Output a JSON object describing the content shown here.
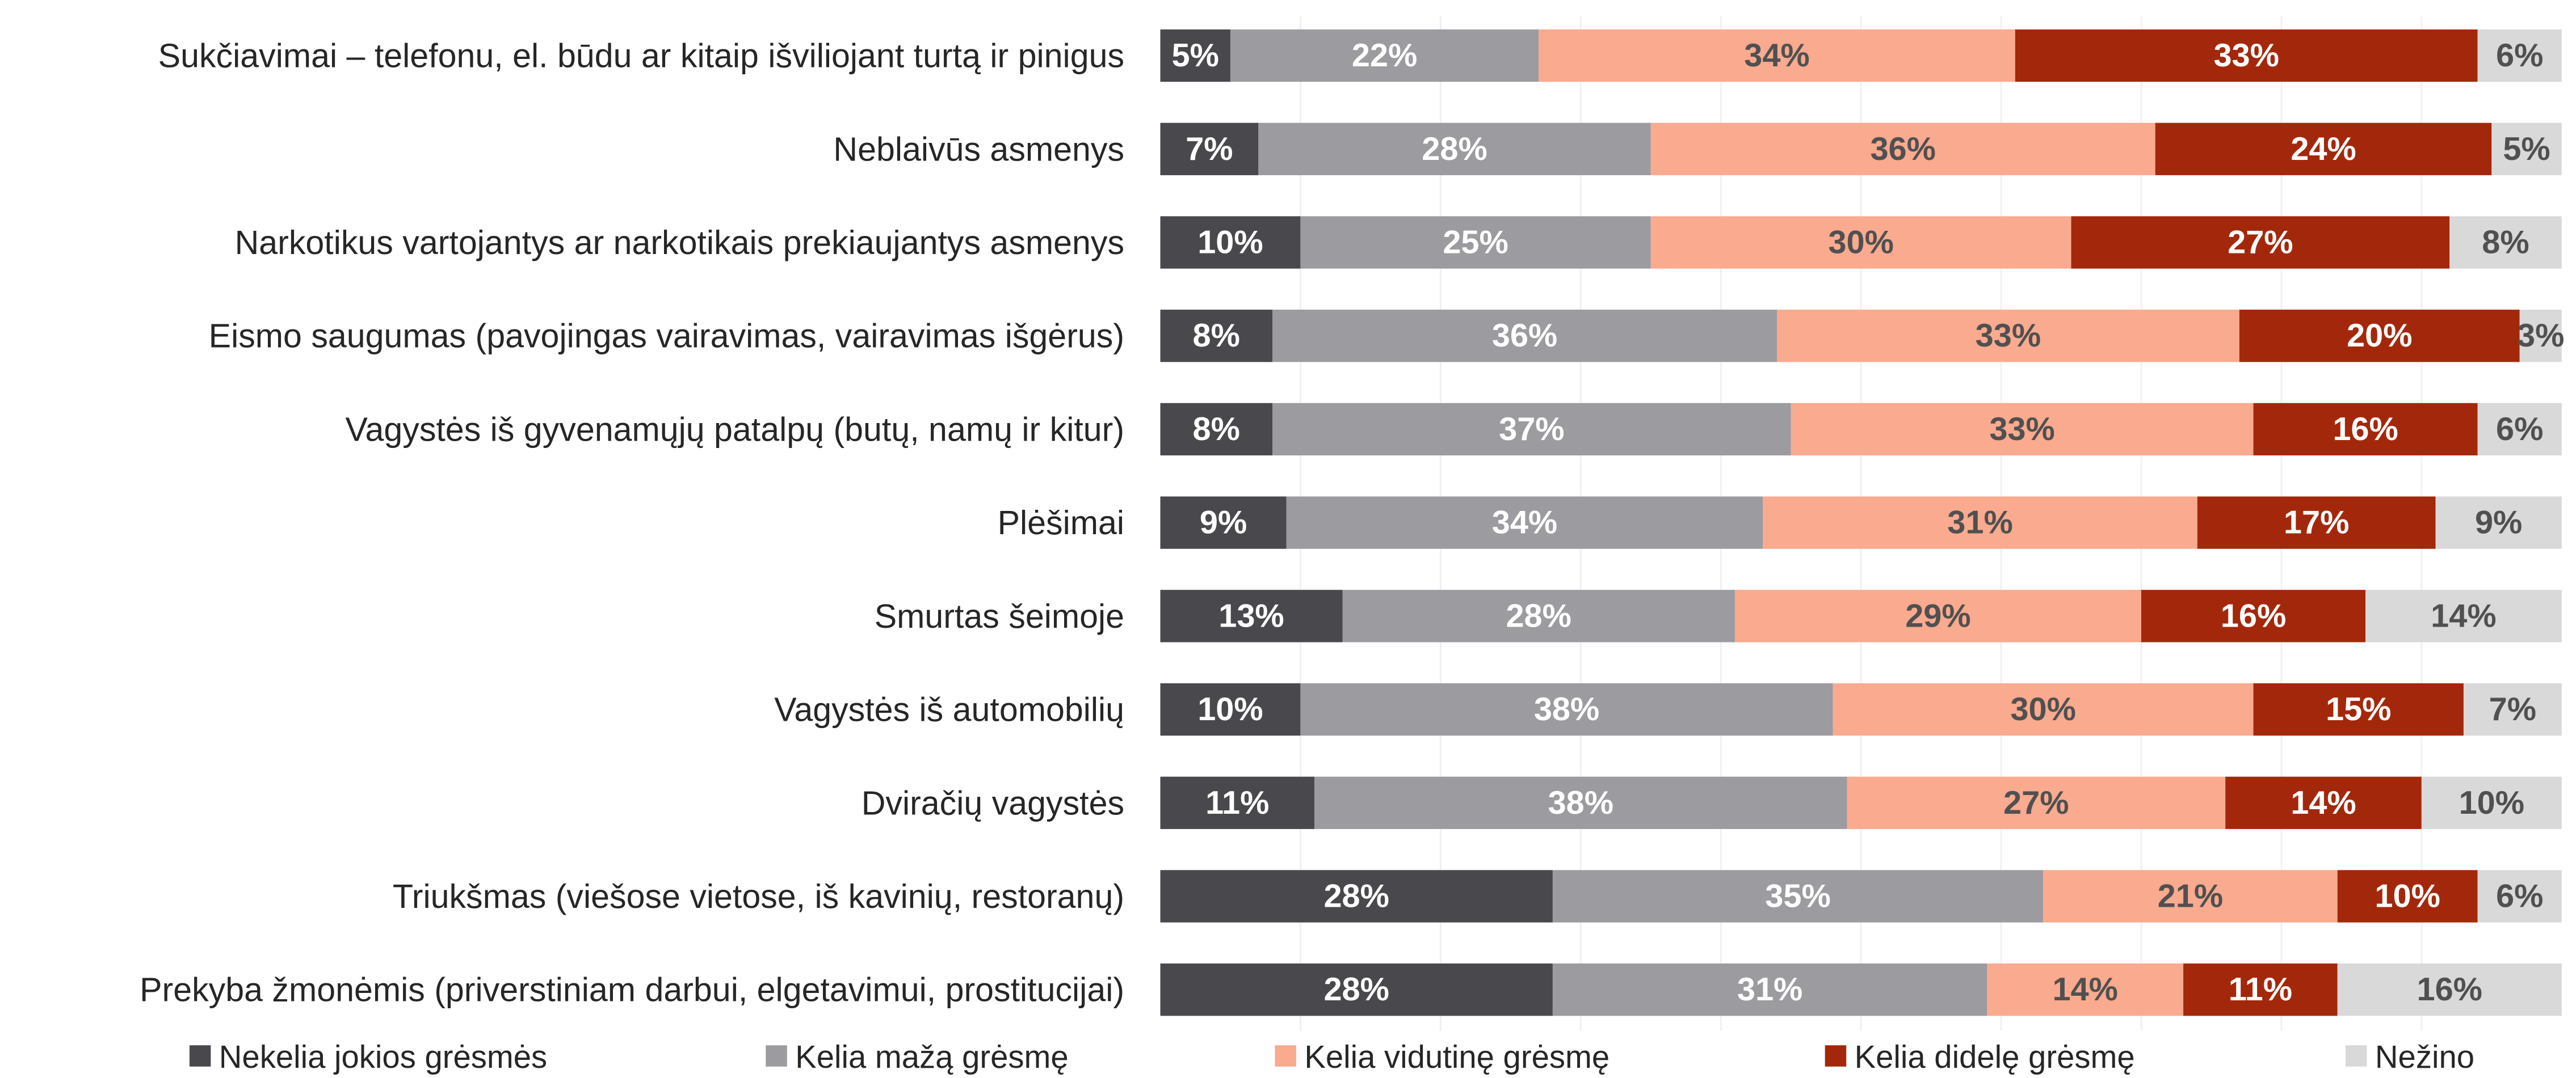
{
  "chart_data": {
    "type": "stacked-bar-horizontal",
    "categories": [
      "Sukčiavimai – telefonu, el. būdu ar kitaip išviliojant turtą ir pinigus",
      "Neblaivūs asmenys",
      "Narkotikus vartojantys ar narkotikais prekiaujantys asmenys",
      "Eismo saugumas (pavojingas vairavimas, vairavimas išgėrus)",
      "Vagystės iš gyvenamųjų patalpų (butų, namų ir kitur)",
      "Plėšimai",
      "Smurtas šeimoje",
      "Vagystės iš automobilių",
      "Dviračių vagystės",
      "Triukšmas (viešose vietose, iš kavinių, restoranų)",
      "Prekyba žmonėmis (priverstiniam darbui, elgetavimui, prostitucijai)"
    ],
    "xlim": [
      0,
      100
    ],
    "legend": "bottom",
    "series": [
      {
        "name": "Nekelia jokios grėsmės",
        "color": "#48484d",
        "values": [
          5,
          7,
          10,
          8,
          8,
          9,
          13,
          10,
          11,
          28,
          28
        ],
        "value_labels": [
          "5%",
          "7%",
          "10%",
          "8%",
          "8%",
          "9%",
          "13%",
          "10%",
          "11%",
          "28%",
          "28%"
        ]
      },
      {
        "name": "Kelia mažą grėsmę",
        "color": "#9b9ba0",
        "values": [
          22,
          28,
          25,
          36,
          37,
          34,
          28,
          38,
          38,
          35,
          31
        ],
        "value_labels": [
          "22%",
          "28%",
          "25%",
          "36%",
          "37%",
          "34%",
          "28%",
          "38%",
          "38%",
          "35%",
          "31%"
        ]
      },
      {
        "name": "Kelia vidutinę grėsmę",
        "color": "#f9aa8f",
        "values": [
          34,
          36,
          30,
          33,
          33,
          31,
          29,
          30,
          27,
          21,
          14
        ],
        "value_labels": [
          "34%",
          "36%",
          "30%",
          "33%",
          "33%",
          "31%",
          "29%",
          "30%",
          "27%",
          "21%",
          "14%"
        ]
      },
      {
        "name": "Kelia didelę grėsmę",
        "color": "#a3280b",
        "values": [
          33,
          24,
          27,
          20,
          16,
          17,
          16,
          15,
          14,
          10,
          11
        ],
        "value_labels": [
          "33%",
          "24%",
          "27%",
          "20%",
          "16%",
          "17%",
          "16%",
          "15%",
          "14%",
          "10%",
          "11%"
        ]
      },
      {
        "name": "Nežino",
        "color": "#d9d9d9",
        "values": [
          6,
          5,
          8,
          3,
          6,
          9,
          14,
          7,
          10,
          6,
          16
        ],
        "value_labels": [
          "6%",
          "5%",
          "8%",
          "3%",
          "6%",
          "9%",
          "14%",
          "7%",
          "10%",
          "6%",
          "16%"
        ]
      }
    ]
  }
}
